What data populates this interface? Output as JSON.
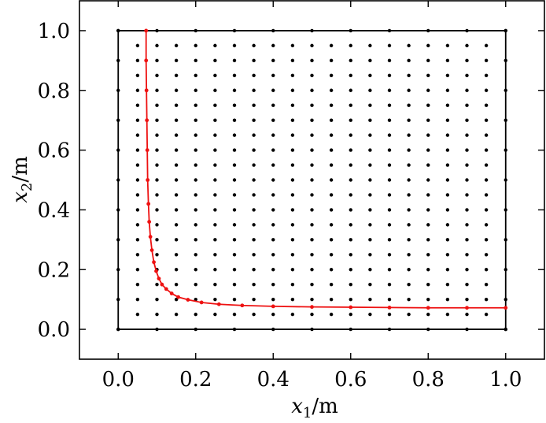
{
  "chart_data": {
    "type": "scatter",
    "xlabel_var": "x",
    "xlabel_sub": "1",
    "xlabel_unit": "/m",
    "ylabel_var": "x",
    "ylabel_sub": "2",
    "ylabel_unit": "/m",
    "xlim": [
      -0.1,
      1.1
    ],
    "ylim": [
      -0.1,
      1.1
    ],
    "xticks": [
      "0.0",
      "0.2",
      "0.4",
      "0.6",
      "0.8",
      "1.0"
    ],
    "yticks": [
      "0.0",
      "0.2",
      "0.4",
      "0.6",
      "0.8",
      "1.0"
    ],
    "grid": false,
    "legend": "none",
    "series": [
      {
        "kind": "boundary-box",
        "x": [
          0,
          1,
          1,
          0,
          0
        ],
        "y": [
          0,
          0,
          1,
          1,
          0
        ],
        "color": "#000000"
      },
      {
        "kind": "boundary-nodes",
        "color": "#000000",
        "bottom_top_x": [
          0.0,
          0.1,
          0.2,
          0.3,
          0.4,
          0.5,
          0.6,
          0.7,
          0.8,
          0.9,
          1.0
        ],
        "left_right_y": [
          0.0,
          0.1,
          0.2,
          0.3,
          0.4,
          0.5,
          0.6,
          0.7,
          0.8,
          0.9,
          1.0
        ]
      },
      {
        "kind": "interior-nodes",
        "color": "#000000",
        "x": [
          0.05,
          0.1,
          0.15,
          0.2,
          0.25,
          0.3,
          0.35,
          0.4,
          0.45,
          0.5,
          0.55,
          0.6,
          0.65,
          0.7,
          0.75,
          0.8,
          0.85,
          0.9,
          0.95
        ],
        "y": [
          0.05,
          0.1,
          0.15,
          0.2,
          0.25,
          0.3,
          0.35,
          0.4,
          0.45,
          0.5,
          0.55,
          0.6,
          0.65,
          0.7,
          0.75,
          0.8,
          0.85,
          0.9,
          0.95
        ]
      },
      {
        "kind": "curve",
        "color": "#ee1111",
        "x": [
          0.072,
          0.072,
          0.073,
          0.074,
          0.075,
          0.076,
          0.078,
          0.08,
          0.083,
          0.087,
          0.092,
          0.098,
          0.105,
          0.113,
          0.124,
          0.138,
          0.155,
          0.18,
          0.215,
          0.26,
          0.32,
          0.4,
          0.5,
          0.6,
          0.7,
          0.8,
          0.9,
          1.0
        ],
        "y": [
          1.0,
          0.9,
          0.8,
          0.7,
          0.6,
          0.5,
          0.42,
          0.36,
          0.31,
          0.265,
          0.225,
          0.195,
          0.17,
          0.15,
          0.135,
          0.12,
          0.108,
          0.099,
          0.09,
          0.084,
          0.08,
          0.077,
          0.075,
          0.074,
          0.073,
          0.072,
          0.072,
          0.072
        ]
      }
    ]
  }
}
